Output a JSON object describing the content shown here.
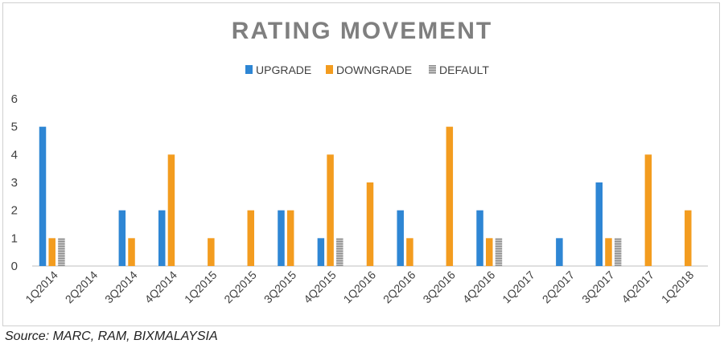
{
  "chart_data": {
    "type": "bar",
    "title": "RATING MOVEMENT",
    "xlabel": "",
    "ylabel": "",
    "ylim": [
      0,
      6
    ],
    "yticks": [
      0,
      1,
      2,
      3,
      4,
      5,
      6
    ],
    "grid": false,
    "legend_position": "top",
    "categories": [
      "1Q2014",
      "2Q2014",
      "3Q2014",
      "4Q2014",
      "1Q2015",
      "2Q2015",
      "3Q2015",
      "4Q2015",
      "1Q2016",
      "2Q2016",
      "3Q2016",
      "4Q2016",
      "1Q2017",
      "2Q2017",
      "3Q2017",
      "4Q2017",
      "1Q2018"
    ],
    "series": [
      {
        "name": "UPGRADE",
        "color": "#2e86d4",
        "values": [
          5,
          0,
          2,
          2,
          0,
          0,
          2,
          1,
          0,
          2,
          0,
          2,
          0,
          1,
          3,
          0,
          0
        ]
      },
      {
        "name": "DOWNGRADE",
        "color": "#f39c1f",
        "values": [
          1,
          0,
          1,
          4,
          1,
          2,
          2,
          4,
          3,
          1,
          5,
          1,
          0,
          0,
          1,
          4,
          2
        ]
      },
      {
        "name": "DEFAULT",
        "color": "#a6a6a6",
        "pattern": "hatched",
        "values": [
          1,
          0,
          0,
          0,
          0,
          0,
          0,
          1,
          0,
          0,
          0,
          1,
          0,
          0,
          1,
          0,
          0
        ]
      }
    ]
  },
  "source": "Source: MARC, RAM, BIXMALAYSIA"
}
